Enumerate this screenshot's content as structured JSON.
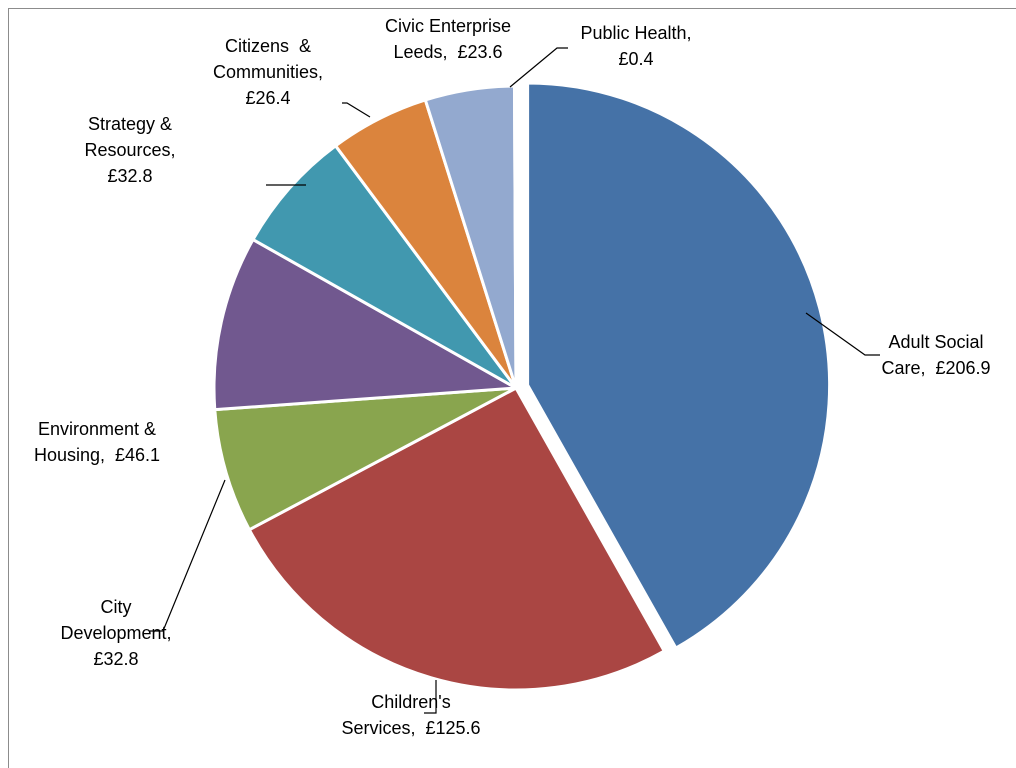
{
  "chart_data": {
    "type": "pie",
    "unit": "£",
    "slices": [
      {
        "name": "Adult Social Care",
        "value": 206.9,
        "color": "#4572A7",
        "label_lines": [
          "Adult Social",
          "Care,  £206.9"
        ],
        "exploded": true
      },
      {
        "name": "Children's Services",
        "value": 125.6,
        "color": "#AA4643",
        "label_lines": [
          "Children's",
          "Services,  £125.6"
        ],
        "exploded": false
      },
      {
        "name": "City Development",
        "value": 32.8,
        "color": "#89A54E",
        "label_lines": [
          "City",
          "Development,",
          "£32.8"
        ],
        "exploded": false
      },
      {
        "name": "Environment & Housing",
        "value": 46.1,
        "color": "#71588F",
        "label_lines": [
          "Environment &",
          "Housing,  £46.1"
        ],
        "exploded": false
      },
      {
        "name": "Strategy & Resources",
        "value": 32.8,
        "color": "#4198AF",
        "label_lines": [
          "Strategy &",
          "Resources,",
          "£32.8"
        ],
        "exploded": false
      },
      {
        "name": "Citizens & Communities",
        "value": 26.4,
        "color": "#DB843D",
        "label_lines": [
          "Citizens  &",
          "Communities,",
          "£26.4"
        ],
        "exploded": false
      },
      {
        "name": "Civic Enterprise Leeds",
        "value": 23.6,
        "color": "#93A9CF",
        "label_lines": [
          "Civic Enterprise",
          "Leeds,  £23.6"
        ],
        "exploded": false
      },
      {
        "name": "Public Health",
        "value": 0.4,
        "color": "#B9CD96",
        "label_lines": [
          "Public Health,",
          "£0.4"
        ],
        "exploded": false
      }
    ],
    "legend": "none"
  }
}
